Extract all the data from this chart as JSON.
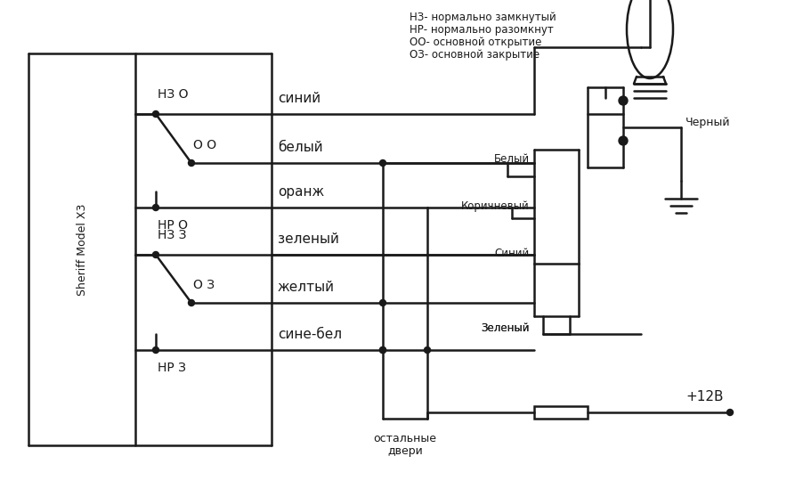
{
  "background_color": "#ffffff",
  "line_color": "#1a1a1a",
  "legend_lines": [
    "НЗ- нормально замкнутый",
    "НР- нормально разомкнут",
    "ОО- основной открытие",
    "ОЗ- основной закрытие"
  ],
  "model_label": "Sheriff Model X3",
  "wire_labels": [
    "синий",
    "белый",
    "оранж",
    "зеленый",
    "желтый",
    "сине-бел"
  ],
  "connector_labels": [
    "Белый",
    "Коричневый",
    "Синий",
    "Зеленый"
  ],
  "black_label": "Черный",
  "power_label": "+12В",
  "other_label": "остальные\nдвери",
  "switch_labels": [
    "НЗ О",
    "О О",
    "НР О",
    "НЗ З",
    "О З",
    "НР З"
  ]
}
